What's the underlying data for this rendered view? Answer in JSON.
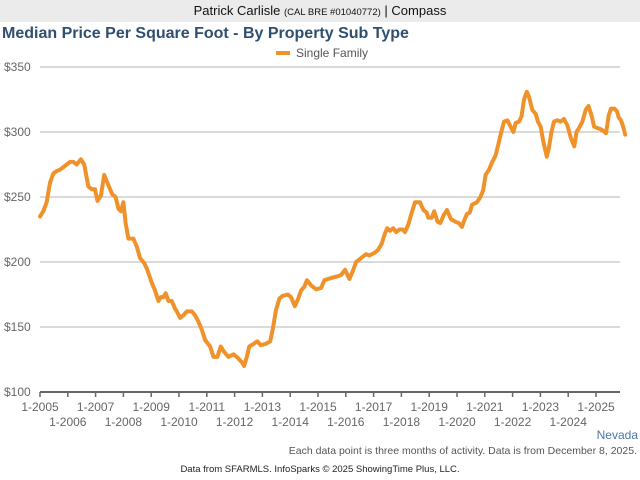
{
  "header": {
    "agent_name": "Patrick Carlisle",
    "license": "(CAL BRE #01040772)",
    "separator": "|",
    "brokerage": "Compass"
  },
  "region_label": "Nevada",
  "note": "Each data point is three months of activity. Data is from December 8, 2025.",
  "footer": "Data from SFARMLS. InfoSparks © 2025 ShowingTime Plus, LLC.",
  "chart_data": {
    "type": "line",
    "title": "Median Price Per Square Foot - By Property Sub Type",
    "xlabel": "",
    "ylabel": "",
    "ylim": [
      100,
      350
    ],
    "xlim": [
      2005.0,
      2025.8
    ],
    "grid": true,
    "legend_position": "top-center",
    "yticks": [
      100,
      150,
      200,
      250,
      300,
      350
    ],
    "ytick_labels": [
      "$100",
      "$150",
      "$200",
      "$250",
      "$300",
      "$350"
    ],
    "xticks": [
      2005,
      2006,
      2007,
      2008,
      2009,
      2010,
      2011,
      2012,
      2013,
      2014,
      2015,
      2016,
      2017,
      2018,
      2019,
      2020,
      2021,
      2022,
      2023,
      2024,
      2025
    ],
    "xtick_labels": [
      "1-2005",
      "1-2006",
      "1-2007",
      "1-2008",
      "1-2009",
      "1-2010",
      "1-2011",
      "1-2012",
      "1-2013",
      "1-2014",
      "1-2015",
      "1-2016",
      "1-2017",
      "1-2018",
      "1-2019",
      "1-2020",
      "1-2021",
      "1-2022",
      "1-2023",
      "1-2024",
      "1-2025"
    ],
    "series": [
      {
        "name": "Single Family",
        "color": "#f0922b",
        "points": [
          [
            2005.0,
            235
          ],
          [
            2005.12,
            239
          ],
          [
            2005.24,
            246
          ],
          [
            2005.36,
            261
          ],
          [
            2005.48,
            268
          ],
          [
            2005.6,
            270
          ],
          [
            2005.72,
            271
          ],
          [
            2005.84,
            273
          ],
          [
            2005.96,
            275
          ],
          [
            2006.08,
            277
          ],
          [
            2006.2,
            277
          ],
          [
            2006.32,
            275
          ],
          [
            2006.47,
            279
          ],
          [
            2006.59,
            275
          ],
          [
            2006.74,
            258
          ],
          [
            2006.86,
            256
          ],
          [
            2006.98,
            256
          ],
          [
            2007.07,
            247
          ],
          [
            2007.19,
            251
          ],
          [
            2007.31,
            267
          ],
          [
            2007.46,
            259
          ],
          [
            2007.6,
            252
          ],
          [
            2007.72,
            250
          ],
          [
            2007.82,
            241
          ],
          [
            2007.91,
            239
          ],
          [
            2008.0,
            246
          ],
          [
            2008.08,
            230
          ],
          [
            2008.18,
            218
          ],
          [
            2008.36,
            218
          ],
          [
            2008.48,
            212
          ],
          [
            2008.6,
            203
          ],
          [
            2008.75,
            199
          ],
          [
            2008.84,
            195
          ],
          [
            2009.02,
            184
          ],
          [
            2009.14,
            178
          ],
          [
            2009.26,
            170
          ],
          [
            2009.34,
            173
          ],
          [
            2009.44,
            173
          ],
          [
            2009.52,
            176
          ],
          [
            2009.62,
            170
          ],
          [
            2009.74,
            170
          ],
          [
            2009.86,
            164
          ],
          [
            2009.92,
            162
          ],
          [
            2010.04,
            157
          ],
          [
            2010.16,
            159
          ],
          [
            2010.28,
            162
          ],
          [
            2010.46,
            162
          ],
          [
            2010.58,
            159
          ],
          [
            2010.7,
            154
          ],
          [
            2010.82,
            148
          ],
          [
            2010.94,
            140
          ],
          [
            2011.12,
            135
          ],
          [
            2011.24,
            127
          ],
          [
            2011.38,
            127
          ],
          [
            2011.5,
            135
          ],
          [
            2011.62,
            131
          ],
          [
            2011.78,
            127
          ],
          [
            2011.96,
            129
          ],
          [
            2012.08,
            127
          ],
          [
            2012.26,
            123
          ],
          [
            2012.34,
            120
          ],
          [
            2012.44,
            127
          ],
          [
            2012.53,
            135
          ],
          [
            2012.68,
            137
          ],
          [
            2012.82,
            139
          ],
          [
            2012.94,
            136
          ],
          [
            2013.12,
            137
          ],
          [
            2013.28,
            139
          ],
          [
            2013.37,
            148
          ],
          [
            2013.49,
            163
          ],
          [
            2013.61,
            172
          ],
          [
            2013.73,
            174
          ],
          [
            2013.91,
            175
          ],
          [
            2014.03,
            173
          ],
          [
            2014.17,
            166
          ],
          [
            2014.29,
            172
          ],
          [
            2014.39,
            178
          ],
          [
            2014.51,
            181
          ],
          [
            2014.6,
            186
          ],
          [
            2014.75,
            182
          ],
          [
            2014.93,
            179
          ],
          [
            2015.11,
            180
          ],
          [
            2015.23,
            186
          ],
          [
            2015.37,
            187
          ],
          [
            2015.53,
            188
          ],
          [
            2015.71,
            189
          ],
          [
            2015.83,
            190
          ],
          [
            2015.97,
            194
          ],
          [
            2016.13,
            187
          ],
          [
            2016.25,
            193
          ],
          [
            2016.37,
            200
          ],
          [
            2016.55,
            203
          ],
          [
            2016.73,
            206
          ],
          [
            2016.85,
            205
          ],
          [
            2017.03,
            207
          ],
          [
            2017.15,
            209
          ],
          [
            2017.29,
            214
          ],
          [
            2017.41,
            222
          ],
          [
            2017.49,
            226
          ],
          [
            2017.59,
            224
          ],
          [
            2017.71,
            226
          ],
          [
            2017.81,
            223
          ],
          [
            2017.93,
            225
          ],
          [
            2018.05,
            225
          ],
          [
            2018.13,
            223
          ],
          [
            2018.25,
            229
          ],
          [
            2018.37,
            238
          ],
          [
            2018.49,
            246
          ],
          [
            2018.67,
            246
          ],
          [
            2018.79,
            240
          ],
          [
            2018.91,
            238
          ],
          [
            2018.97,
            234
          ],
          [
            2019.09,
            234
          ],
          [
            2019.18,
            239
          ],
          [
            2019.3,
            231
          ],
          [
            2019.4,
            230
          ],
          [
            2019.52,
            236
          ],
          [
            2019.64,
            240
          ],
          [
            2019.78,
            233
          ],
          [
            2019.94,
            231
          ],
          [
            2020.06,
            230
          ],
          [
            2020.18,
            227
          ],
          [
            2020.24,
            231
          ],
          [
            2020.36,
            237
          ],
          [
            2020.46,
            238
          ],
          [
            2020.54,
            244
          ],
          [
            2020.72,
            246
          ],
          [
            2020.84,
            250
          ],
          [
            2020.94,
            255
          ],
          [
            2021.03,
            267
          ],
          [
            2021.15,
            271
          ],
          [
            2021.27,
            277
          ],
          [
            2021.39,
            282
          ],
          [
            2021.47,
            289
          ],
          [
            2021.57,
            298
          ],
          [
            2021.69,
            308
          ],
          [
            2021.81,
            309
          ],
          [
            2021.93,
            304
          ],
          [
            2022.03,
            300
          ],
          [
            2022.11,
            307
          ],
          [
            2022.23,
            308
          ],
          [
            2022.32,
            312
          ],
          [
            2022.41,
            325
          ],
          [
            2022.51,
            331
          ],
          [
            2022.59,
            327
          ],
          [
            2022.71,
            317
          ],
          [
            2022.83,
            314
          ],
          [
            2022.91,
            308
          ],
          [
            2023.01,
            304
          ],
          [
            2023.1,
            293
          ],
          [
            2023.23,
            281
          ],
          [
            2023.31,
            288
          ],
          [
            2023.39,
            299
          ],
          [
            2023.49,
            308
          ],
          [
            2023.61,
            309
          ],
          [
            2023.73,
            308
          ],
          [
            2023.85,
            310
          ],
          [
            2023.97,
            305
          ],
          [
            2024.1,
            295
          ],
          [
            2024.22,
            289
          ],
          [
            2024.3,
            300
          ],
          [
            2024.39,
            303
          ],
          [
            2024.51,
            308
          ],
          [
            2024.63,
            317
          ],
          [
            2024.73,
            320
          ],
          [
            2024.85,
            312
          ],
          [
            2024.93,
            304
          ],
          [
            2025.06,
            303
          ],
          [
            2025.18,
            302
          ],
          [
            2025.26,
            301
          ],
          [
            2025.36,
            299
          ],
          [
            2025.46,
            313
          ],
          [
            2025.54,
            318
          ],
          [
            2025.66,
            318
          ],
          [
            2025.75,
            316
          ],
          [
            2025.82,
            311
          ],
          [
            2025.9,
            309
          ],
          [
            2025.98,
            304
          ],
          [
            2026.05,
            298
          ]
        ]
      }
    ]
  }
}
